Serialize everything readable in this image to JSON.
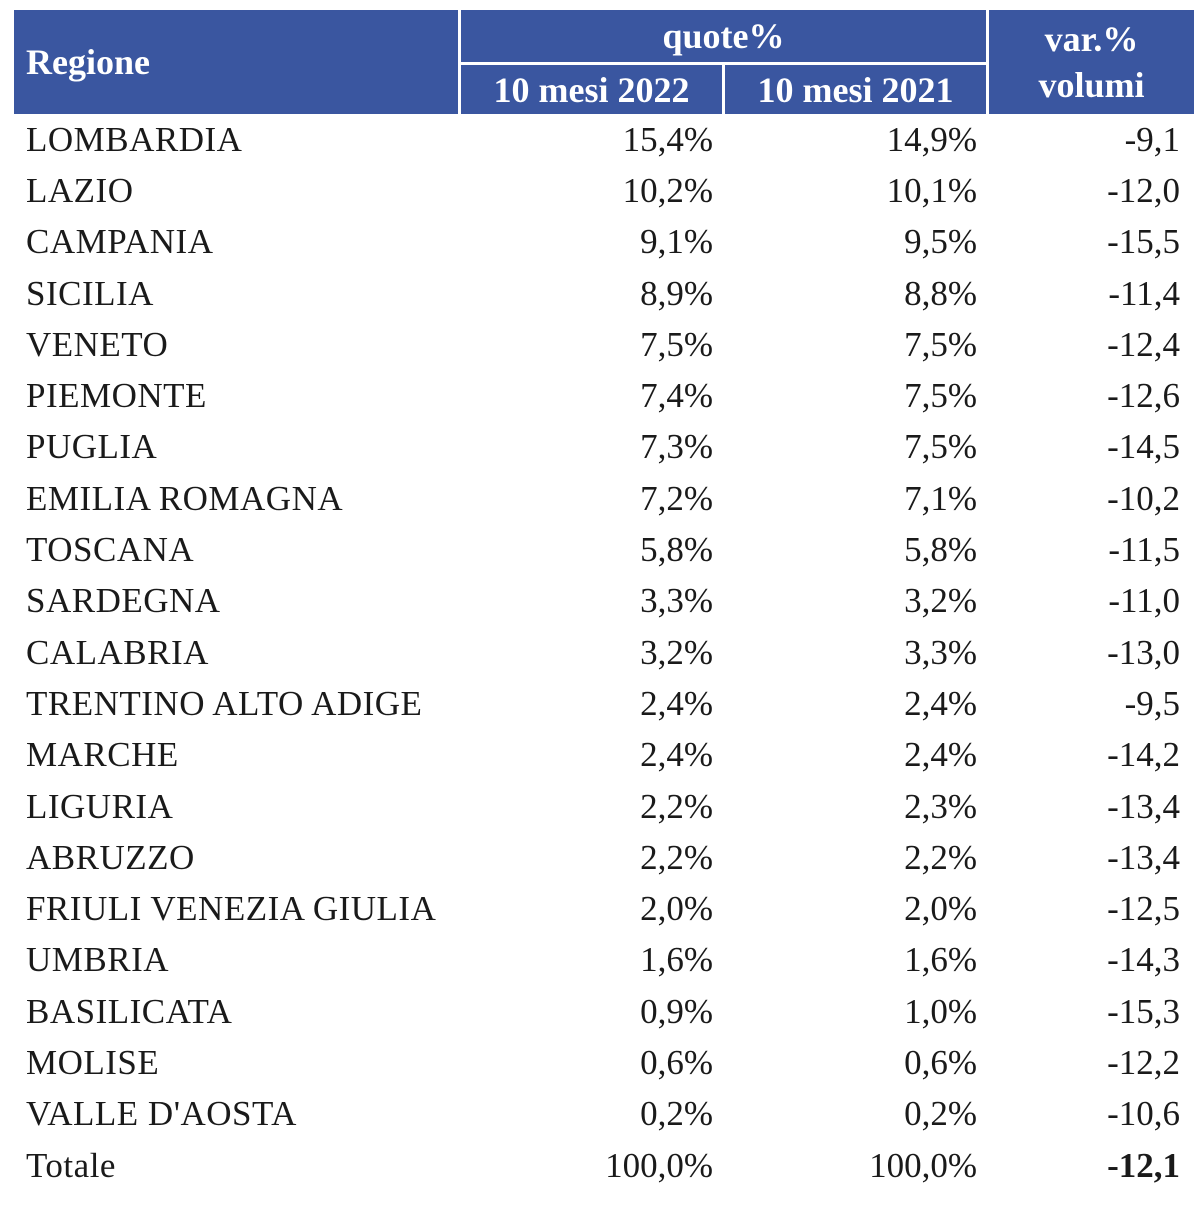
{
  "header": {
    "region": "Regione",
    "quote": "quote%",
    "col_2022": "10 mesi 2022",
    "col_2021": "10 mesi 2021",
    "var_line1": "var.%",
    "var_line2": "volumi"
  },
  "rows": [
    {
      "region": "LOMBARDIA",
      "q2022": "15,4%",
      "q2021": "14,9%",
      "var": "-9,1"
    },
    {
      "region": "LAZIO",
      "q2022": "10,2%",
      "q2021": "10,1%",
      "var": "-12,0"
    },
    {
      "region": "CAMPANIA",
      "q2022": "9,1%",
      "q2021": "9,5%",
      "var": "-15,5"
    },
    {
      "region": "SICILIA",
      "q2022": "8,9%",
      "q2021": "8,8%",
      "var": "-11,4"
    },
    {
      "region": "VENETO",
      "q2022": "7,5%",
      "q2021": "7,5%",
      "var": "-12,4"
    },
    {
      "region": "PIEMONTE",
      "q2022": "7,4%",
      "q2021": "7,5%",
      "var": "-12,6"
    },
    {
      "region": "PUGLIA",
      "q2022": "7,3%",
      "q2021": "7,5%",
      "var": "-14,5"
    },
    {
      "region": "EMILIA ROMAGNA",
      "q2022": "7,2%",
      "q2021": "7,1%",
      "var": "-10,2"
    },
    {
      "region": "TOSCANA",
      "q2022": "5,8%",
      "q2021": "5,8%",
      "var": "-11,5"
    },
    {
      "region": "SARDEGNA",
      "q2022": "3,3%",
      "q2021": "3,2%",
      "var": "-11,0"
    },
    {
      "region": "CALABRIA",
      "q2022": "3,2%",
      "q2021": "3,3%",
      "var": "-13,0"
    },
    {
      "region": "TRENTINO ALTO ADIGE",
      "q2022": "2,4%",
      "q2021": "2,4%",
      "var": "-9,5"
    },
    {
      "region": "MARCHE",
      "q2022": "2,4%",
      "q2021": "2,4%",
      "var": "-14,2"
    },
    {
      "region": "LIGURIA",
      "q2022": "2,2%",
      "q2021": "2,3%",
      "var": "-13,4"
    },
    {
      "region": "ABRUZZO",
      "q2022": "2,2%",
      "q2021": "2,2%",
      "var": "-13,4"
    },
    {
      "region": "FRIULI VENEZIA GIULIA",
      "q2022": "2,0%",
      "q2021": "2,0%",
      "var": "-12,5"
    },
    {
      "region": "UMBRIA",
      "q2022": "1,6%",
      "q2021": "1,6%",
      "var": "-14,3"
    },
    {
      "region": "BASILICATA",
      "q2022": "0,9%",
      "q2021": "1,0%",
      "var": "-15,3"
    },
    {
      "region": "MOLISE",
      "q2022": "0,6%",
      "q2021": "0,6%",
      "var": "-12,2"
    },
    {
      "region": "VALLE D'AOSTA",
      "q2022": "0,2%",
      "q2021": "0,2%",
      "var": "-10,6"
    }
  ],
  "total": {
    "region": "Totale",
    "q2022": "100,0%",
    "q2021": "100,0%",
    "var": "-12,1"
  },
  "colors": {
    "header_background": "#3a56a0",
    "header_text": "#ffffff",
    "body_text": "#1a1a1a"
  }
}
